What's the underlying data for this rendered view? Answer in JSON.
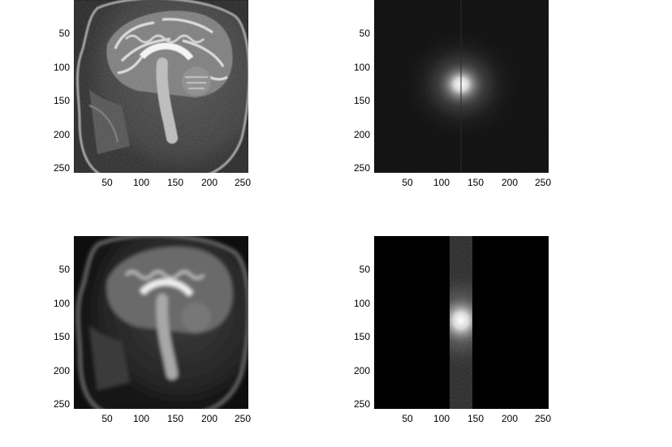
{
  "chart_data": [
    {
      "type": "heatmap",
      "content": "mri-sagittal-brain-slice",
      "xlim": [
        1,
        256
      ],
      "ylim": [
        256,
        1
      ],
      "xticks": [
        50,
        100,
        150,
        200,
        250
      ],
      "yticks": [
        50,
        100,
        150,
        200,
        250
      ],
      "xtick_labels": [
        "50",
        "100",
        "150",
        "200",
        "250"
      ],
      "ytick_labels": [
        "50",
        "100",
        "150",
        "200",
        "250"
      ],
      "colormap": "gray"
    },
    {
      "type": "heatmap",
      "content": "k-space-full",
      "xlim": [
        1,
        256
      ],
      "ylim": [
        256,
        1
      ],
      "xticks": [
        50,
        100,
        150,
        200,
        250
      ],
      "yticks": [
        50,
        100,
        150,
        200,
        250
      ],
      "xtick_labels": [
        "50",
        "100",
        "150",
        "200",
        "250"
      ],
      "ytick_labels": [
        "50",
        "100",
        "150",
        "200",
        "250"
      ],
      "colormap": "gray",
      "bright_center": [
        128,
        128
      ]
    },
    {
      "type": "heatmap",
      "content": "mri-sagittal-brain-slice-blurred",
      "xlim": [
        1,
        256
      ],
      "ylim": [
        256,
        1
      ],
      "xticks": [
        50,
        100,
        150,
        200,
        250
      ],
      "yticks": [
        50,
        100,
        150,
        200,
        250
      ],
      "xtick_labels": [
        "50",
        "100",
        "150",
        "200",
        "250"
      ],
      "ytick_labels": [
        "50",
        "100",
        "150",
        "200",
        "250"
      ],
      "colormap": "gray"
    },
    {
      "type": "heatmap",
      "content": "k-space-truncated-band",
      "xlim": [
        1,
        256
      ],
      "ylim": [
        256,
        1
      ],
      "xticks": [
        50,
        100,
        150,
        200,
        250
      ],
      "yticks": [
        50,
        100,
        150,
        200,
        250
      ],
      "xtick_labels": [
        "50",
        "100",
        "150",
        "200",
        "250"
      ],
      "ytick_labels": [
        "50",
        "100",
        "150",
        "200",
        "250"
      ],
      "colormap": "gray",
      "bright_center": [
        128,
        128
      ],
      "band_x": [
        113,
        143
      ]
    }
  ]
}
